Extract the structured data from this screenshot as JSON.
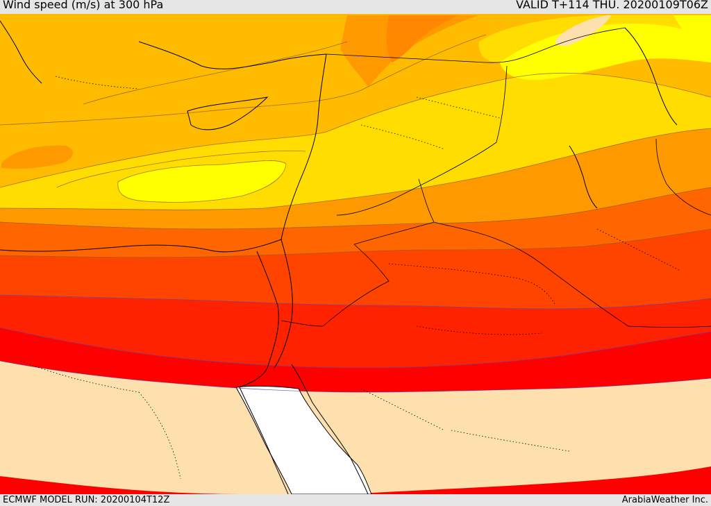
{
  "header": {
    "title": "Wind speed (m/s) at 300 hPa",
    "valid": "VALID T+114 THU. 20200109T06Z"
  },
  "footer": {
    "model_run": "ECMWF MODEL RUN: 20200104T12Z",
    "credit": "ArabiaWeather Inc."
  },
  "map": {
    "variable": "wind speed",
    "units": "m/s",
    "level": "300 hPa",
    "palette": {
      "calm": "#fde0ae",
      "band_a": "#ffbb00",
      "band_b": "#ffdd00",
      "band_c": "#ffff00",
      "band_d": "#ff9900",
      "band_e": "#ff6600",
      "band_f": "#ff4400",
      "band_g": "#ff2200",
      "band_h": "#ff0000",
      "sea": "#ffffff",
      "contour": "#8a5a30",
      "jet_contour": "#5a3fb0",
      "coast": "#000000"
    }
  }
}
